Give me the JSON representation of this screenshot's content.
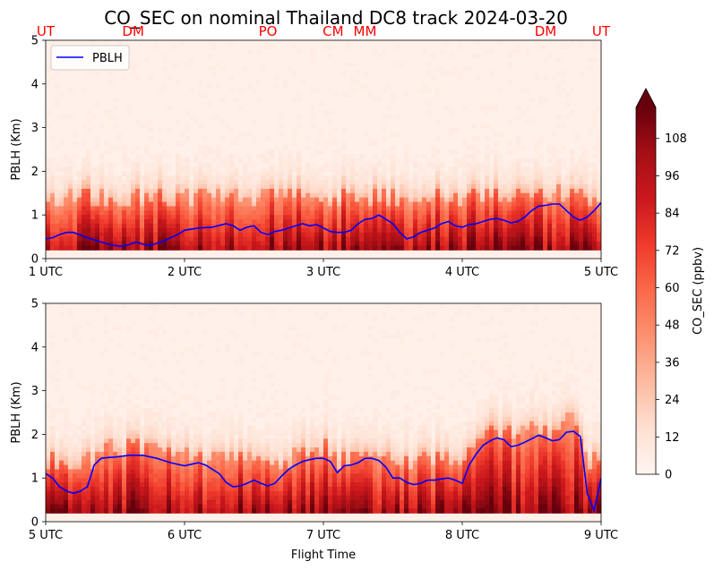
{
  "title": "CO_SEC on nominal Thailand DC8 track 2024-03-20",
  "xlabel": "Flight Time",
  "colorbar_label": "CO_SEC (ppbv)",
  "colors": {
    "pblh_line": "#0000ff",
    "location_label": "#ff0000"
  },
  "chart_data": [
    {
      "type": "heatmap",
      "panel": "top",
      "ylabel": "PBLH (Km)",
      "ylim": [
        0,
        5
      ],
      "xlim_hours_utc": [
        1,
        5
      ],
      "yticks": [
        "0",
        "1",
        "2",
        "3",
        "4",
        "5"
      ],
      "xticks": [
        {
          "value": 1,
          "label": "1 UTC"
        },
        {
          "value": 2,
          "label": "2 UTC"
        },
        {
          "value": 3,
          "label": "3 UTC"
        },
        {
          "value": 4,
          "label": "4 UTC"
        },
        {
          "value": 5,
          "label": "5 UTC"
        }
      ],
      "location_labels": [
        {
          "label": "UT",
          "time": 1.0
        },
        {
          "label": "DM",
          "time": 1.63
        },
        {
          "label": "PO",
          "time": 2.6
        },
        {
          "label": "CM",
          "time": 3.07
        },
        {
          "label": "MM",
          "time": 3.3
        },
        {
          "label": "DM",
          "time": 4.6
        },
        {
          "label": "UT",
          "time": 5.0
        }
      ],
      "legend": {
        "entries": [
          "PBLH"
        ],
        "placement": "upper left"
      },
      "series": [
        {
          "name": "PBLH",
          "x": [
            1.0,
            1.05,
            1.1,
            1.15,
            1.2,
            1.3,
            1.4,
            1.45,
            1.5,
            1.55,
            1.6,
            1.65,
            1.7,
            1.75,
            1.8,
            1.85,
            1.9,
            1.95,
            2.0,
            2.1,
            2.2,
            2.3,
            2.35,
            2.4,
            2.45,
            2.5,
            2.55,
            2.6,
            2.65,
            2.7,
            2.75,
            2.8,
            2.85,
            2.9,
            2.95,
            3.0,
            3.05,
            3.1,
            3.15,
            3.2,
            3.25,
            3.3,
            3.35,
            3.4,
            3.45,
            3.5,
            3.55,
            3.6,
            3.65,
            3.7,
            3.75,
            3.8,
            3.85,
            3.9,
            3.95,
            4.0,
            4.05,
            4.1,
            4.15,
            4.2,
            4.25,
            4.3,
            4.35,
            4.4,
            4.45,
            4.5,
            4.55,
            4.6,
            4.65,
            4.7,
            4.75,
            4.8,
            4.85,
            4.9,
            4.95,
            5.0
          ],
          "y": [
            0.45,
            0.48,
            0.55,
            0.6,
            0.6,
            0.48,
            0.38,
            0.33,
            0.3,
            0.28,
            0.32,
            0.38,
            0.33,
            0.3,
            0.35,
            0.4,
            0.48,
            0.55,
            0.65,
            0.7,
            0.72,
            0.8,
            0.75,
            0.65,
            0.72,
            0.75,
            0.6,
            0.55,
            0.62,
            0.65,
            0.7,
            0.75,
            0.8,
            0.75,
            0.78,
            0.7,
            0.62,
            0.6,
            0.6,
            0.65,
            0.8,
            0.9,
            0.92,
            1.0,
            0.9,
            0.8,
            0.6,
            0.45,
            0.5,
            0.6,
            0.65,
            0.7,
            0.8,
            0.85,
            0.75,
            0.72,
            0.78,
            0.8,
            0.85,
            0.9,
            0.92,
            0.88,
            0.82,
            0.85,
            0.95,
            1.1,
            1.2,
            1.22,
            1.25,
            1.25,
            1.1,
            0.95,
            0.88,
            0.95,
            1.1,
            1.28
          ]
        }
      ]
    },
    {
      "type": "heatmap",
      "panel": "bottom",
      "ylabel": "PBLH (Km)",
      "ylim": [
        0,
        5
      ],
      "xlim_hours_utc": [
        5,
        9
      ],
      "yticks": [
        "0",
        "1",
        "2",
        "3",
        "4",
        "5"
      ],
      "xticks": [
        {
          "value": 5,
          "label": "5 UTC"
        },
        {
          "value": 6,
          "label": "6 UTC"
        },
        {
          "value": 7,
          "label": "7 UTC"
        },
        {
          "value": 8,
          "label": "8 UTC"
        },
        {
          "value": 9,
          "label": "9 UTC"
        }
      ],
      "series": [
        {
          "name": "PBLH",
          "x": [
            5.0,
            5.05,
            5.1,
            5.15,
            5.2,
            5.25,
            5.3,
            5.35,
            5.4,
            5.45,
            5.5,
            5.6,
            5.7,
            5.8,
            5.9,
            6.0,
            6.1,
            6.15,
            6.2,
            6.25,
            6.3,
            6.35,
            6.4,
            6.45,
            6.5,
            6.55,
            6.6,
            6.65,
            6.7,
            6.75,
            6.8,
            6.85,
            6.9,
            6.95,
            7.0,
            7.05,
            7.1,
            7.15,
            7.2,
            7.25,
            7.3,
            7.35,
            7.4,
            7.45,
            7.5,
            7.55,
            7.6,
            7.65,
            7.7,
            7.75,
            7.8,
            7.85,
            7.9,
            7.95,
            8.0,
            8.05,
            8.1,
            8.15,
            8.2,
            8.25,
            8.3,
            8.35,
            8.4,
            8.45,
            8.5,
            8.55,
            8.6,
            8.65,
            8.7,
            8.75,
            8.8,
            8.85,
            8.9,
            8.95,
            9.0
          ],
          "y": [
            1.1,
            1.0,
            0.8,
            0.7,
            0.65,
            0.7,
            0.8,
            1.3,
            1.45,
            1.47,
            1.48,
            1.52,
            1.52,
            1.45,
            1.35,
            1.28,
            1.35,
            1.3,
            1.2,
            1.1,
            0.9,
            0.8,
            0.82,
            0.88,
            0.95,
            0.88,
            0.82,
            0.88,
            1.05,
            1.2,
            1.3,
            1.38,
            1.42,
            1.45,
            1.45,
            1.38,
            1.12,
            1.28,
            1.3,
            1.35,
            1.45,
            1.45,
            1.4,
            1.25,
            1.0,
            1.0,
            0.9,
            0.85,
            0.88,
            0.95,
            0.95,
            0.98,
            1.0,
            0.95,
            0.88,
            1.3,
            1.55,
            1.75,
            1.85,
            1.92,
            1.88,
            1.72,
            1.75,
            1.82,
            1.9,
            1.98,
            1.92,
            1.85,
            1.88,
            2.05,
            2.07,
            1.95,
            0.65,
            0.25,
            1.0
          ]
        }
      ]
    }
  ],
  "colorbar": {
    "cmap": "Reds",
    "min": 0,
    "max": 118,
    "extend": "max",
    "ticks": [
      0,
      12,
      24,
      36,
      48,
      60,
      72,
      84,
      96,
      108
    ]
  }
}
